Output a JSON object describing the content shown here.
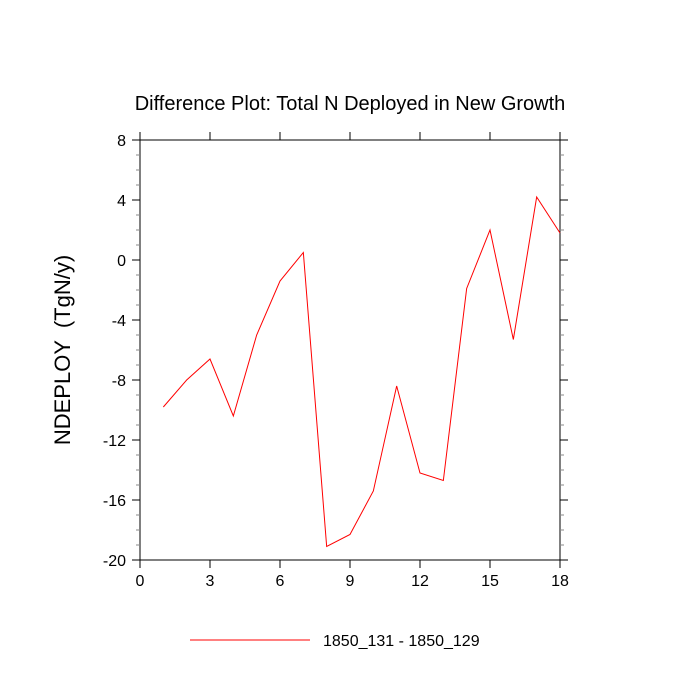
{
  "chart_data": {
    "type": "line",
    "title": "Difference Plot: Total N Deployed in New Growth",
    "xlabel": "",
    "ylabel": "NDEPLOY  (TgN/y)",
    "xlim": [
      0,
      18
    ],
    "ylim": [
      -20,
      8
    ],
    "xticks": [
      0,
      3,
      6,
      9,
      12,
      15,
      18
    ],
    "yticks": [
      8,
      4,
      0,
      -4,
      -8,
      -12,
      -16,
      -20
    ],
    "xtick_labels": [
      "0",
      "3",
      "6",
      "9",
      "12",
      "15",
      "18"
    ],
    "ytick_labels": [
      "8",
      "4",
      "0",
      "-4",
      "-8",
      "-12",
      "-16",
      "-20"
    ],
    "grid": false,
    "legend_position": "bottom",
    "series": [
      {
        "name": "1850_131 - 1850_129",
        "color": "#ff0000",
        "x": [
          1,
          2,
          3,
          4,
          5,
          6,
          7,
          8,
          9,
          10,
          11,
          12,
          13,
          14,
          15,
          16,
          17,
          18
        ],
        "y": [
          -9.8,
          -8.0,
          -6.6,
          -10.4,
          -5.0,
          -1.4,
          0.5,
          -19.1,
          -18.3,
          -15.4,
          -8.4,
          -14.2,
          -14.7,
          -1.9,
          2.0,
          -5.3,
          4.2,
          1.8
        ]
      }
    ]
  }
}
